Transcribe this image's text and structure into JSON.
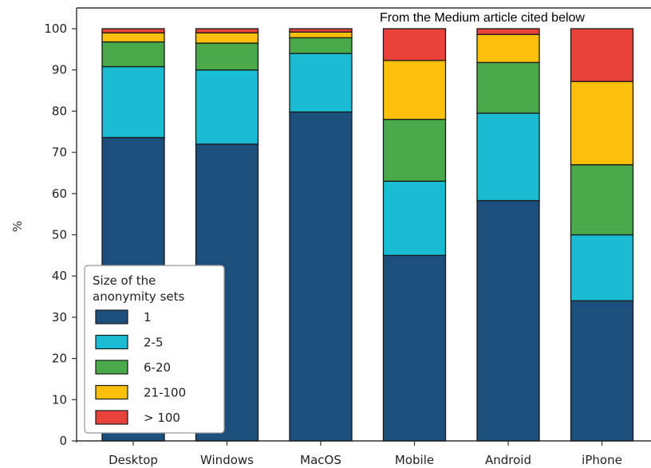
{
  "chart_data": {
    "type": "bar",
    "stacked": true,
    "categories": [
      "Desktop",
      "Windows",
      "MacOS",
      "Mobile",
      "Android",
      "iPhone"
    ],
    "ylabel": "%",
    "xlabel": "",
    "ylim": [
      0,
      100
    ],
    "yticks": [
      0,
      10,
      20,
      30,
      40,
      50,
      60,
      70,
      80,
      90,
      100
    ],
    "grid": false,
    "legend": {
      "title": "Size of the\nanonymity sets",
      "position": "bottom-left"
    },
    "annotation": "From the Medium article cited below",
    "series": [
      {
        "name": "1",
        "color": "#1d4f7c",
        "values": [
          73.6,
          72.0,
          79.8,
          45.0,
          58.3,
          34.0
        ]
      },
      {
        "name": "2-5",
        "color": "#19bcd3",
        "values": [
          17.2,
          18.0,
          14.2,
          18.0,
          21.2,
          16.0
        ]
      },
      {
        "name": "6-20",
        "color": "#4aa94a",
        "values": [
          6.0,
          6.5,
          3.8,
          15.0,
          12.3,
          17.0
        ]
      },
      {
        "name": "21-100",
        "color": "#fbbf0c",
        "values": [
          2.2,
          2.5,
          1.4,
          14.3,
          6.8,
          20.2
        ]
      },
      {
        "name": "> 100",
        "color": "#e8423a",
        "values": [
          1.0,
          1.0,
          0.8,
          7.7,
          1.4,
          12.8
        ]
      }
    ]
  }
}
